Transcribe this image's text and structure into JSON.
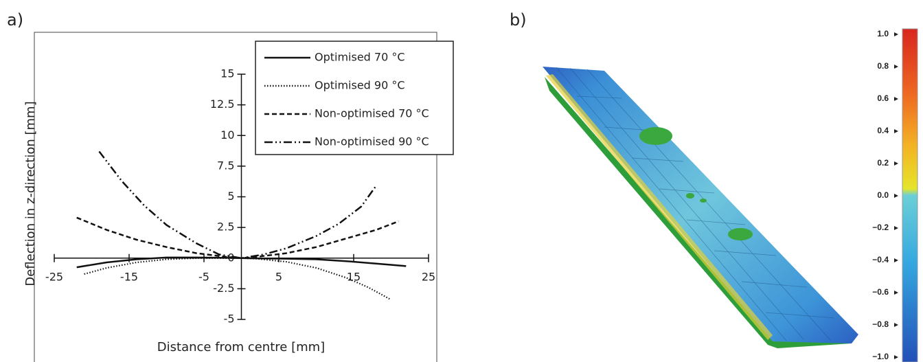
{
  "chart_data": {
    "type": "line",
    "panel_label": "a)",
    "x_label": "Distance from centre [mm]",
    "y_label": "Deflection in z-direction [mm]",
    "xlim": [
      -25,
      25
    ],
    "xticks": [
      -25,
      -15,
      -5,
      5,
      15,
      25
    ],
    "ylim": [
      -5,
      15
    ],
    "yticks": [
      -5,
      -2.5,
      0,
      2.5,
      5,
      7.5,
      10,
      12.5,
      15
    ],
    "series": [
      {
        "name": "Optimised 70 °C",
        "color": "#111111",
        "line_style": "solid",
        "x": [
          -22,
          -18,
          -14,
          -10,
          -6,
          -2,
          0,
          2,
          6,
          10,
          14,
          18,
          22
        ],
        "values": [
          -0.75,
          -0.35,
          -0.1,
          0.05,
          0.05,
          0.02,
          0,
          -0.02,
          -0.05,
          -0.1,
          -0.25,
          -0.45,
          -0.65
        ]
      },
      {
        "name": "Optimised  90 °C",
        "color": "#111111",
        "line_style": "dotted",
        "x": [
          -21,
          -18,
          -14,
          -10,
          -6,
          -2,
          0,
          2,
          6,
          10,
          14,
          17,
          20
        ],
        "values": [
          -1.3,
          -0.8,
          -0.35,
          -0.1,
          0,
          0,
          0,
          -0.05,
          -0.3,
          -0.8,
          -1.6,
          -2.4,
          -3.4
        ]
      },
      {
        "name": "Non-optimised 70 °C",
        "color": "#111111",
        "line_style": "dashed",
        "x": [
          -22,
          -18,
          -14,
          -10,
          -6,
          -2,
          0,
          2,
          6,
          10,
          14,
          18,
          21
        ],
        "values": [
          3.3,
          2.3,
          1.5,
          0.9,
          0.4,
          0.1,
          0,
          0.1,
          0.4,
          0.9,
          1.6,
          2.3,
          3.0
        ]
      },
      {
        "name": "Non-optimised 90 °C",
        "color": "#111111",
        "line_style": "dashdotdot",
        "x": [
          -19,
          -16,
          -13,
          -10,
          -6,
          -3,
          0,
          3,
          6,
          10,
          13,
          16,
          18
        ],
        "values": [
          8.7,
          6.3,
          4.3,
          2.7,
          1.2,
          0.3,
          0,
          0.3,
          0.8,
          1.8,
          2.8,
          4.2,
          5.9
        ]
      }
    ]
  },
  "panel_b": {
    "panel_label": "b)",
    "colorbar": {
      "lim": [
        -1,
        1
      ],
      "ticks": [
        {
          "value": 1,
          "label": "1.0"
        },
        {
          "value": 0.8,
          "label": "0.8"
        },
        {
          "value": 0.6,
          "label": "0.6"
        },
        {
          "value": 0.4,
          "label": "0.4"
        },
        {
          "value": 0.2,
          "label": "0.2"
        },
        {
          "value": 0,
          "label": "0.0"
        },
        {
          "value": -0.2,
          "label": "−0.2"
        },
        {
          "value": -0.4,
          "label": "−0.4"
        },
        {
          "value": -0.6,
          "label": "−0.6"
        },
        {
          "value": -0.8,
          "label": "−0.8"
        },
        {
          "value": -1,
          "label": "−1.0"
        }
      ]
    }
  }
}
